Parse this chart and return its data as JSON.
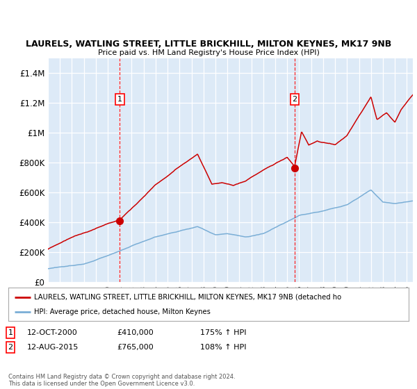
{
  "title": "LAURELS, WATLING STREET, LITTLE BRICKHILL, MILTON KEYNES, MK17 9NB",
  "subtitle": "Price paid vs. HM Land Registry's House Price Index (HPI)",
  "bg_color": "#ddeaf7",
  "red_line_color": "#cc0000",
  "blue_line_color": "#7aaed6",
  "marker1_x": 2001.0,
  "marker1_price": 410000,
  "marker1_date": "12-OCT-2000",
  "marker1_hpi": "175% ↑ HPI",
  "marker2_x": 2015.62,
  "marker2_price": 765000,
  "marker2_date": "12-AUG-2015",
  "marker2_hpi": "108% ↑ HPI",
  "legend_red": "LAURELS, WATLING STREET, LITTLE BRICKHILL, MILTON KEYNES, MK17 9NB (detached ho",
  "legend_blue": "HPI: Average price, detached house, Milton Keynes",
  "footer": "Contains HM Land Registry data © Crown copyright and database right 2024.\nThis data is licensed under the Open Government Licence v3.0.",
  "ylim": [
    0,
    1500000
  ],
  "yticks": [
    0,
    200000,
    400000,
    600000,
    800000,
    1000000,
    1200000,
    1400000
  ],
  "ytick_labels": [
    "£0",
    "£200K",
    "£400K",
    "£600K",
    "£800K",
    "£1M",
    "£1.2M",
    "£1.4M"
  ],
  "xmin": 1995,
  "xmax": 2025.5
}
